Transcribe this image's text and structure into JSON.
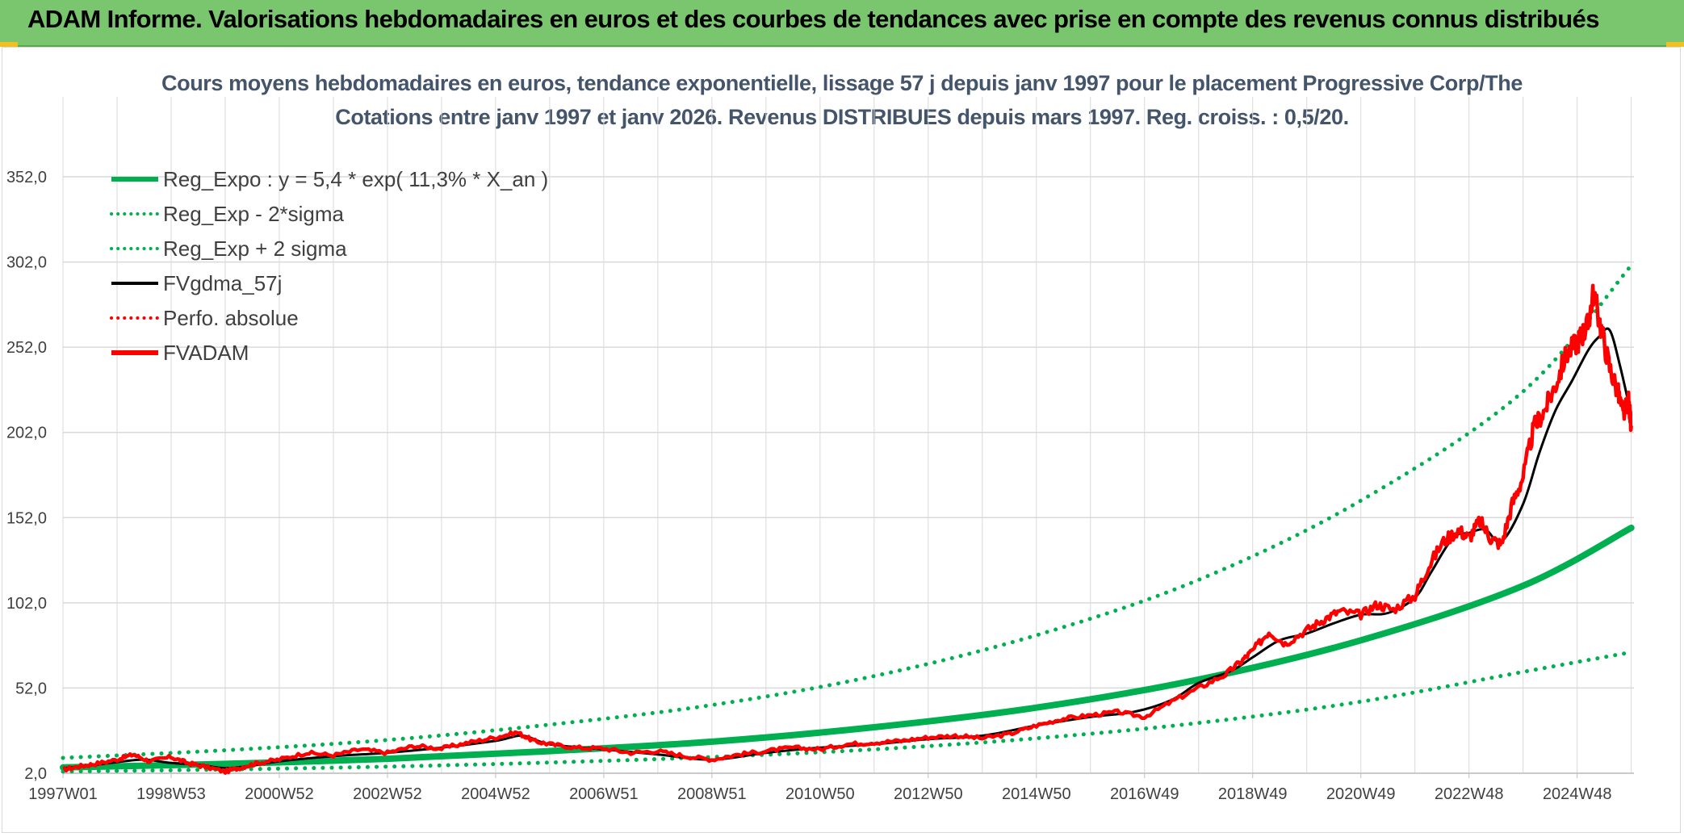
{
  "header": {
    "title": "ADAM Informe. Valorisations hebdomadaires en euros et des courbes de tendances avec prise en compte des revenus connus distribués"
  },
  "colors": {
    "banner": "#7ac66f",
    "reg": "#00b050",
    "fv": "#000000",
    "adam": "#ff0000",
    "grid": "#d9d9d9"
  },
  "chart_data": {
    "type": "line",
    "title": "Cours moyens hebdomadaires en euros, tendance exponentielle, lissage 57 j depuis janv 1997 pour le placement Progressive Corp/The",
    "subtitle": "Cotations entre janv 1997 et janv 2026. Revenus DISTRIBUES depuis mars 1997. Reg. croiss. : 0,5/20.",
    "xlabel": "",
    "ylabel": "",
    "ylim": [
      2,
      352
    ],
    "x_range": [
      1997.0,
      2026.05
    ],
    "x_ticks": [
      {
        "label": "1997W01",
        "x": 1997.0
      },
      {
        "label": "1998W53",
        "x": 1999.0
      },
      {
        "label": "2000W52",
        "x": 2001.0
      },
      {
        "label": "2002W52",
        "x": 2003.0
      },
      {
        "label": "2004W52",
        "x": 2005.0
      },
      {
        "label": "2006W51",
        "x": 2007.0
      },
      {
        "label": "2008W51",
        "x": 2009.0
      },
      {
        "label": "2010W50",
        "x": 2011.0
      },
      {
        "label": "2012W50",
        "x": 2013.0
      },
      {
        "label": "2014W50",
        "x": 2015.0
      },
      {
        "label": "2016W49",
        "x": 2017.0
      },
      {
        "label": "2018W49",
        "x": 2019.0
      },
      {
        "label": "2020W49",
        "x": 2021.0
      },
      {
        "label": "2022W48",
        "x": 2023.0
      },
      {
        "label": "2024W48",
        "x": 2025.0
      }
    ],
    "y_ticks": [
      "2,0",
      "52,0",
      "102,0",
      "152,0",
      "202,0",
      "252,0",
      "302,0",
      "352,0"
    ],
    "y_tick_values": [
      2,
      52,
      102,
      152,
      202,
      252,
      302,
      352
    ],
    "grid": true,
    "legend_position": "top-left",
    "legend": [
      {
        "label": "Reg_Expo : y = 5,4 * exp( 11,3% *  X_an )",
        "color": "#00b050",
        "style": "solid-thick"
      },
      {
        "label": "Reg_Exp - 2*sigma",
        "color": "#00b050",
        "style": "dotted"
      },
      {
        "label": "Reg_Exp + 2 sigma",
        "color": "#00b050",
        "style": "dotted"
      },
      {
        "label": "FVgdma_57j",
        "color": "#000000",
        "style": "solid"
      },
      {
        "label": "Perfo. absolue",
        "color": "#ff0000",
        "style": "dotted"
      },
      {
        "label": "FVADAM",
        "color": "#ff0000",
        "style": "solid-thick"
      }
    ],
    "series": [
      {
        "name": "Reg_Expo",
        "x": [
          1997.0,
          2000.0,
          2003.0,
          2006.0,
          2009.0,
          2012.0,
          2015.0,
          2018.0,
          2021.0,
          2024.0,
          2026.0
        ],
        "values": [
          5.4,
          7.5,
          10.5,
          15.0,
          20.5,
          29.0,
          40.5,
          57.0,
          80.0,
          112.0,
          146.0
        ]
      },
      {
        "name": "Reg_Exp - 2*sigma",
        "x": [
          1997.0,
          2000.0,
          2003.0,
          2006.0,
          2009.0,
          2012.0,
          2015.0,
          2018.0,
          2021.0,
          2024.0,
          2026.0
        ],
        "values": [
          3.0,
          4.2,
          5.9,
          8.3,
          11.5,
          16.0,
          22.5,
          31.5,
          44.0,
          61.5,
          73.0
        ]
      },
      {
        "name": "Reg_Exp + 2 sigma",
        "x": [
          1997.0,
          2000.0,
          2003.0,
          2006.0,
          2009.0,
          2012.0,
          2015.0,
          2018.0,
          2021.0,
          2024.0,
          2026.0
        ],
        "values": [
          11.0,
          15.5,
          21.5,
          30.5,
          42.0,
          59.0,
          83.0,
          115.5,
          162.0,
          226.0,
          300.0
        ]
      },
      {
        "name": "FVgdma_57j",
        "x": [
          1997.0,
          1997.5,
          1998.0,
          1998.5,
          1999.0,
          1999.5,
          2000.0,
          2000.5,
          2001.0,
          2002.0,
          2003.0,
          2004.0,
          2005.0,
          2005.5,
          2006.0,
          2007.0,
          2008.0,
          2009.0,
          2010.0,
          2011.0,
          2012.0,
          2013.0,
          2014.0,
          2015.0,
          2016.0,
          2016.8,
          2017.5,
          2018.0,
          2018.6,
          2019.0,
          2019.5,
          2020.0,
          2020.5,
          2021.0,
          2021.5,
          2022.0,
          2022.3,
          2022.7,
          2023.0,
          2023.3,
          2023.6,
          2024.0,
          2024.3,
          2024.6,
          2024.9,
          2025.2,
          2025.4,
          2025.6,
          2025.8,
          2026.0
        ],
        "values": [
          5.0,
          6.5,
          8.5,
          10.0,
          8.0,
          7.0,
          5.0,
          6.5,
          9.0,
          12.0,
          14.0,
          17.0,
          21.0,
          24.0,
          19.0,
          16.0,
          13.0,
          10.0,
          14.0,
          17.0,
          19.0,
          22.0,
          24.0,
          30.0,
          35.0,
          38.0,
          45.0,
          55.0,
          62.0,
          70.0,
          80.0,
          84.0,
          90.0,
          95.0,
          96.0,
          105.0,
          120.0,
          140.0,
          143.0,
          145.0,
          138.0,
          160.0,
          190.0,
          215.0,
          232.0,
          250.0,
          258.0,
          262.0,
          240.0,
          212.0
        ]
      },
      {
        "name": "FVADAM",
        "x": [
          1997.0,
          1997.3,
          1997.6,
          1998.0,
          1998.3,
          1998.6,
          1999.0,
          1999.3,
          1999.6,
          2000.0,
          2000.3,
          2000.6,
          2001.0,
          2001.5,
          2002.0,
          2002.5,
          2003.0,
          2003.5,
          2004.0,
          2004.5,
          2005.0,
          2005.4,
          2005.7,
          2006.0,
          2006.5,
          2007.0,
          2007.5,
          2008.0,
          2008.5,
          2009.0,
          2009.5,
          2010.0,
          2010.5,
          2011.0,
          2011.5,
          2012.0,
          2012.5,
          2013.0,
          2013.5,
          2014.0,
          2014.5,
          2015.0,
          2015.5,
          2016.0,
          2016.5,
          2017.0,
          2017.5,
          2018.0,
          2018.5,
          2018.8,
          2019.0,
          2019.3,
          2019.6,
          2020.0,
          2020.3,
          2020.6,
          2021.0,
          2021.3,
          2021.6,
          2022.0,
          2022.2,
          2022.5,
          2022.8,
          2023.0,
          2023.2,
          2023.4,
          2023.6,
          2023.8,
          2024.0,
          2024.2,
          2024.4,
          2024.6,
          2024.8,
          2025.0,
          2025.1,
          2025.2,
          2025.3,
          2025.45,
          2025.6,
          2025.75,
          2025.85,
          2025.95,
          2026.0
        ],
        "values": [
          4.0,
          6.0,
          7.5,
          10.0,
          13.0,
          9.0,
          11.5,
          8.0,
          6.0,
          3.0,
          5.5,
          8.0,
          10.0,
          14.0,
          12.5,
          16.0,
          14.0,
          18.0,
          16.5,
          20.0,
          23.0,
          26.0,
          21.0,
          19.0,
          17.0,
          16.5,
          14.0,
          15.0,
          12.0,
          10.0,
          13.0,
          15.0,
          17.0,
          16.0,
          19.0,
          20.0,
          21.0,
          23.0,
          24.0,
          22.5,
          25.0,
          30.0,
          34.0,
          36.0,
          38.0,
          35.0,
          44.0,
          52.0,
          60.0,
          68.0,
          74.0,
          85.0,
          78.0,
          86.0,
          92.0,
          97.0,
          95.0,
          101.0,
          98.0,
          106.0,
          120.0,
          137.0,
          145.0,
          140.0,
          150.0,
          140.0,
          136.0,
          160.0,
          176.0,
          205.0,
          215.0,
          230.0,
          248.0,
          255.0,
          260.0,
          265.0,
          284.0,
          262.0,
          240.0,
          226.0,
          212.0,
          220.0,
          206.0
        ]
      }
    ]
  }
}
